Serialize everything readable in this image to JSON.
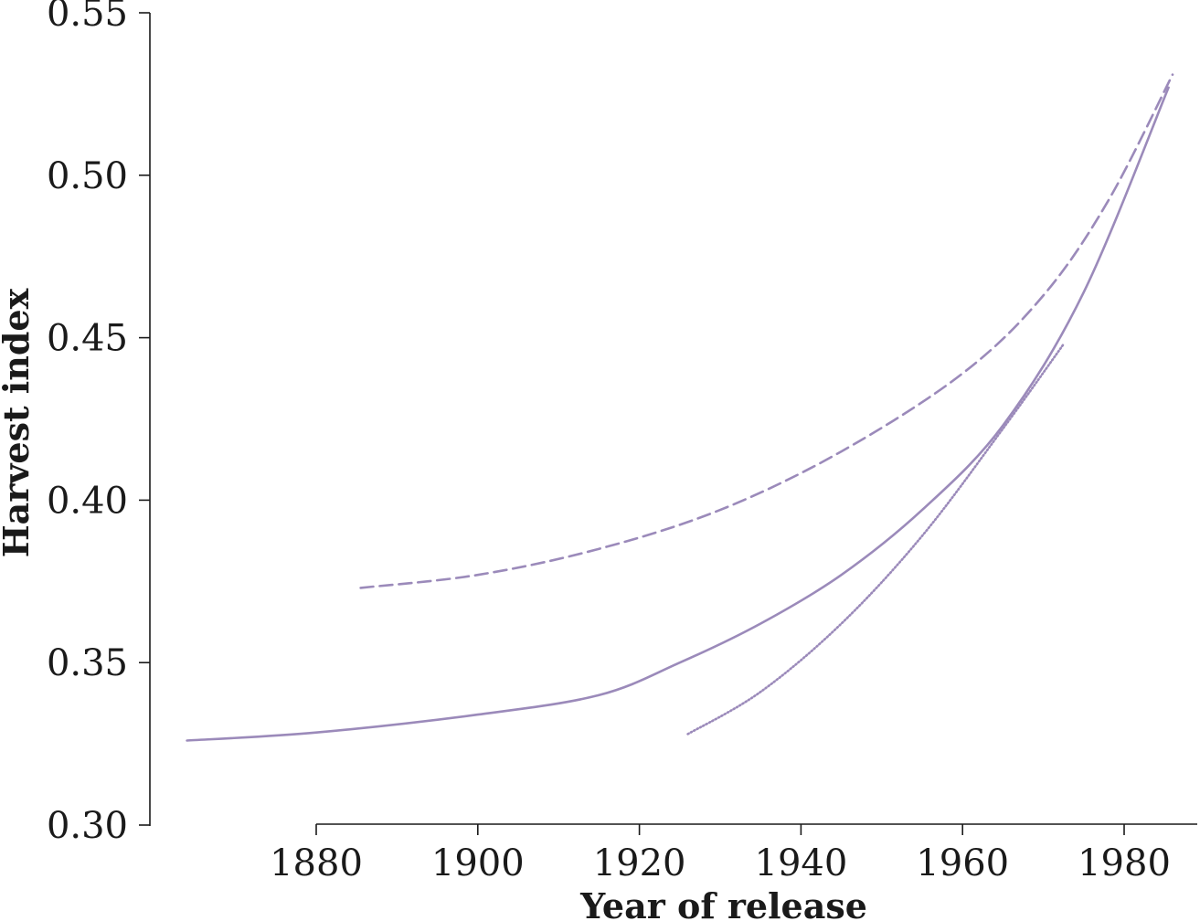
{
  "chart_data": {
    "type": "line",
    "xlabel": "Year of release",
    "ylabel": "Harvest index",
    "xlim": [
      1860,
      1990
    ],
    "ylim": [
      0.3,
      0.55
    ],
    "xticks": [
      "1880",
      "1900",
      "1920",
      "1940",
      "1960",
      "1980"
    ],
    "yticks": [
      "0.30",
      "0.35",
      "0.40",
      "0.45",
      "0.50",
      "0.55"
    ],
    "grid": false,
    "legend": "none",
    "line_color": "#9b8aba",
    "series": [
      {
        "style": "solid",
        "x": [
          1864,
          1880,
          1900,
          1915,
          1925,
          1935,
          1945,
          1955,
          1965,
          1975,
          1985.5
        ],
        "y": [
          0.326,
          0.3285,
          0.334,
          0.34,
          0.35,
          0.362,
          0.377,
          0.397,
          0.423,
          0.464,
          0.527
        ]
      },
      {
        "style": "dashed",
        "x": [
          1885.5,
          1900,
          1915,
          1930,
          1945,
          1960,
          1970,
          1978,
          1986
        ],
        "y": [
          0.373,
          0.377,
          0.385,
          0.397,
          0.415,
          0.439,
          0.463,
          0.492,
          0.531
        ]
      },
      {
        "style": "dotted",
        "x": [
          1926,
          1935,
          1945,
          1955,
          1965,
          1972.5
        ],
        "y": [
          0.328,
          0.341,
          0.362,
          0.389,
          0.422,
          0.448
        ]
      }
    ]
  }
}
